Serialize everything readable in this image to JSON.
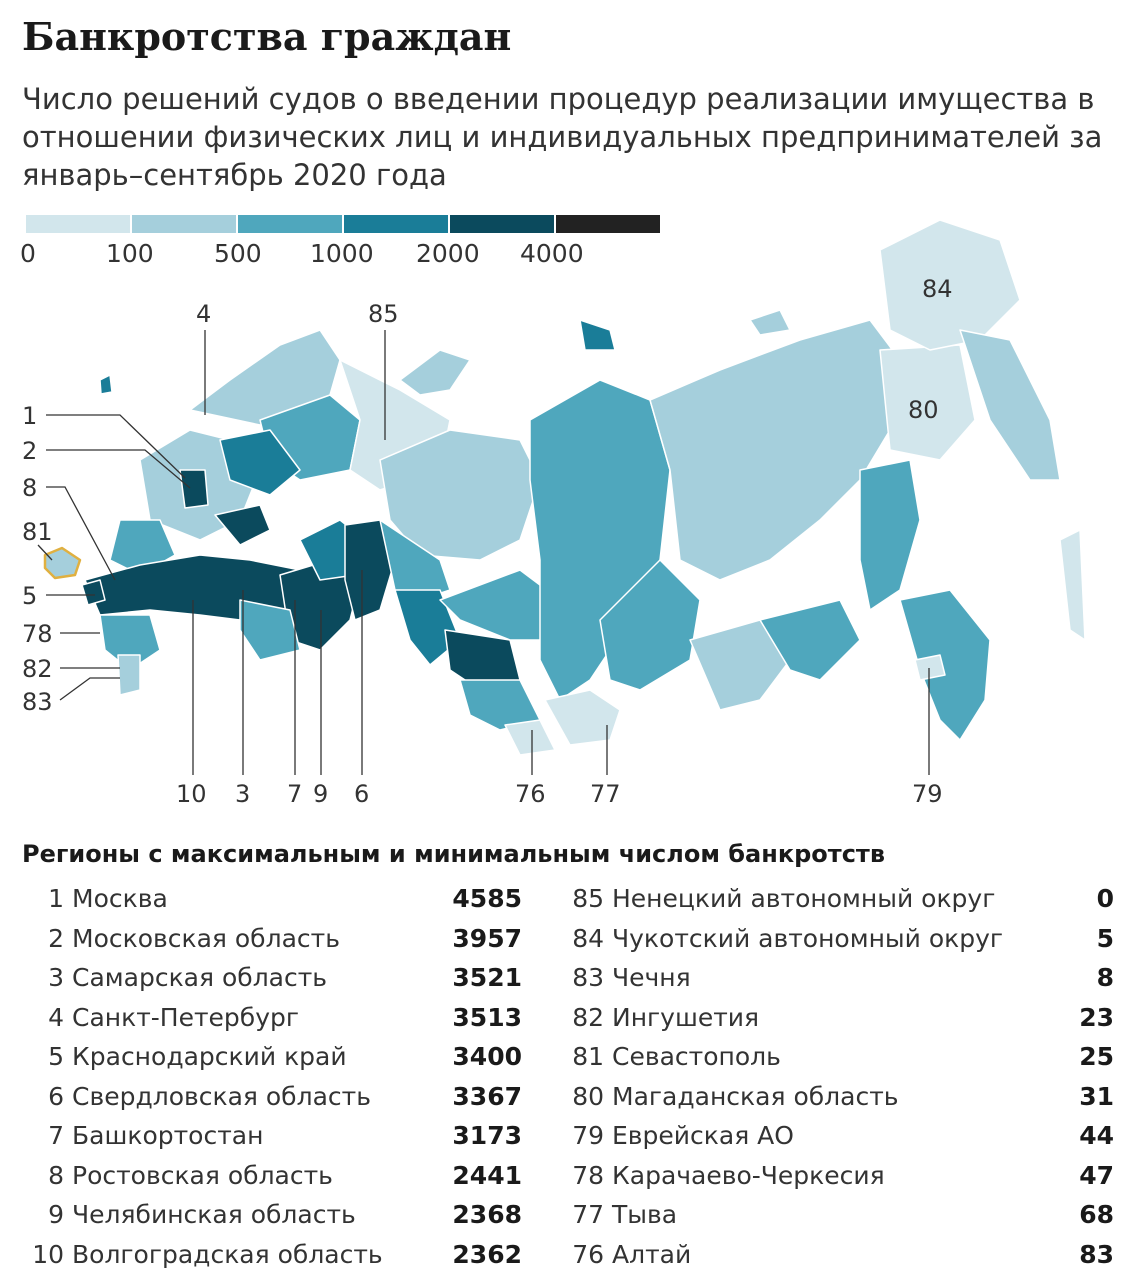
{
  "title": "Банкротства граждан",
  "subtitle": "Число решений судов о введении процедур реализации имущества в отношении физических лиц и индивидуальных предпринимателей за январь–сентябрь 2020 года",
  "legend": {
    "colors": [
      "#d2e6ec",
      "#a5cfdc",
      "#4fa7bd",
      "#1a7d98",
      "#0b4a5d",
      "#222222"
    ],
    "labels": [
      "0",
      "100",
      "500",
      "1000",
      "2000",
      "4000"
    ]
  },
  "map": {
    "callouts": [
      "1",
      "2",
      "8",
      "81",
      "5",
      "78",
      "82",
      "83",
      "4",
      "85",
      "10",
      "3",
      "7",
      "9",
      "6",
      "76",
      "77",
      "79"
    ],
    "inline_labels": [
      "84",
      "80"
    ]
  },
  "table": {
    "heading": "Регионы с максимальным и минимальным числом банкротств",
    "max": [
      {
        "rank": "1",
        "region": "Москва",
        "value": "4585"
      },
      {
        "rank": "2",
        "region": "Московская область",
        "value": "3957"
      },
      {
        "rank": "3",
        "region": "Самарская область",
        "value": "3521"
      },
      {
        "rank": "4",
        "region": "Санкт-Петербург",
        "value": "3513"
      },
      {
        "rank": "5",
        "region": "Краснодарский край",
        "value": "3400"
      },
      {
        "rank": "6",
        "region": "Свердловская область",
        "value": "3367"
      },
      {
        "rank": "7",
        "region": "Башкортостан",
        "value": "3173"
      },
      {
        "rank": "8",
        "region": "Ростовская область",
        "value": "2441"
      },
      {
        "rank": "9",
        "region": "Челябинская область",
        "value": "2368"
      },
      {
        "rank": "10",
        "region": "Волгоградская область",
        "value": "2362"
      }
    ],
    "min": [
      {
        "rank": "85",
        "region": "Ненецкий автономный округ",
        "value": "0"
      },
      {
        "rank": "84",
        "region": "Чукотский автономный округ",
        "value": "5"
      },
      {
        "rank": "83",
        "region": "Чечня",
        "value": "8"
      },
      {
        "rank": "82",
        "region": "Ингушетия",
        "value": "23"
      },
      {
        "rank": "81",
        "region": "Севастополь",
        "value": "25"
      },
      {
        "rank": "80",
        "region": "Магаданская область",
        "value": "31"
      },
      {
        "rank": "79",
        "region": "Еврейская АО",
        "value": "44"
      },
      {
        "rank": "78",
        "region": "Карачаево-Черкесия",
        "value": "47"
      },
      {
        "rank": "77",
        "region": "Тыва",
        "value": "68"
      },
      {
        "rank": "76",
        "region": "Алтай",
        "value": "83"
      }
    ]
  }
}
